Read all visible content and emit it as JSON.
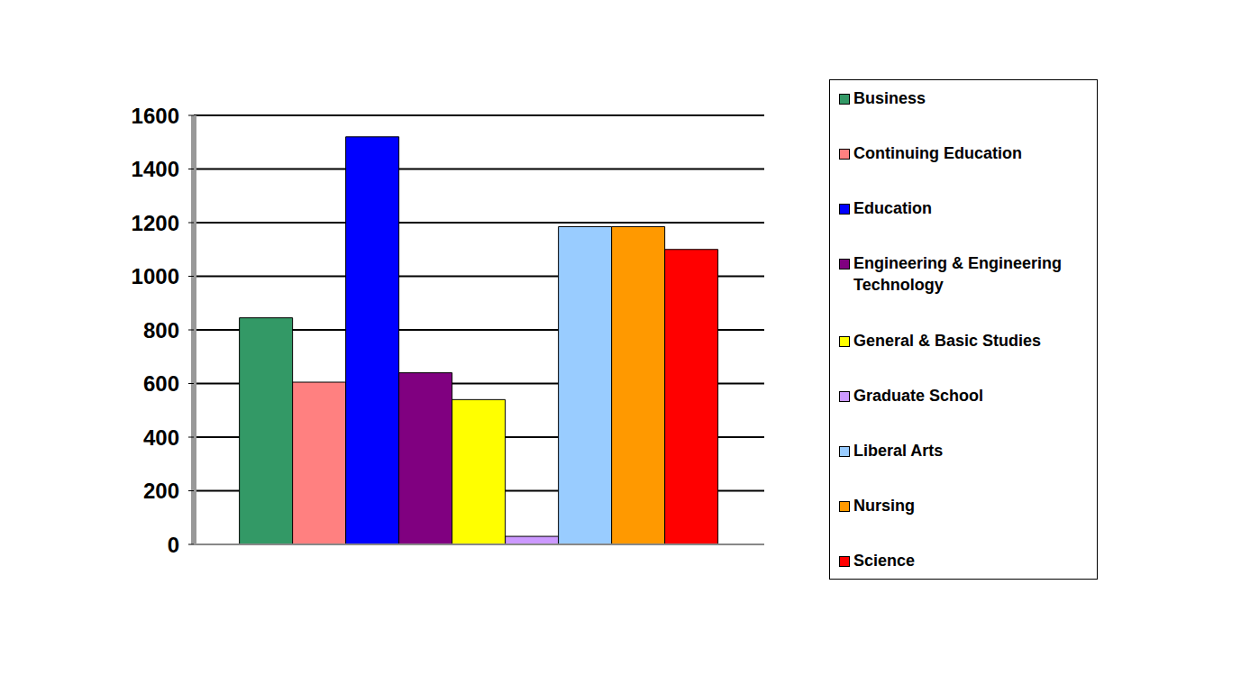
{
  "chart_data": {
    "type": "bar",
    "categories": [
      "Business",
      "Continuing Education",
      "Education",
      "Engineering & Engineering Technology",
      "General & Basic Studies",
      "Graduate School",
      "Liberal Arts",
      "Nursing",
      "Science"
    ],
    "values": [
      845,
      605,
      1520,
      640,
      540,
      30,
      1185,
      1185,
      1100
    ],
    "colors": [
      "#339966",
      "#ff8080",
      "#0000ff",
      "#800080",
      "#ffff00",
      "#cc99ff",
      "#99ccff",
      "#ff9900",
      "#ff0000"
    ],
    "ylim": [
      0,
      1600
    ],
    "yticks": [
      0,
      200,
      400,
      600,
      800,
      1000,
      1200,
      1400,
      1600
    ],
    "grid": true,
    "legend": "right",
    "tick_labels": "y"
  }
}
